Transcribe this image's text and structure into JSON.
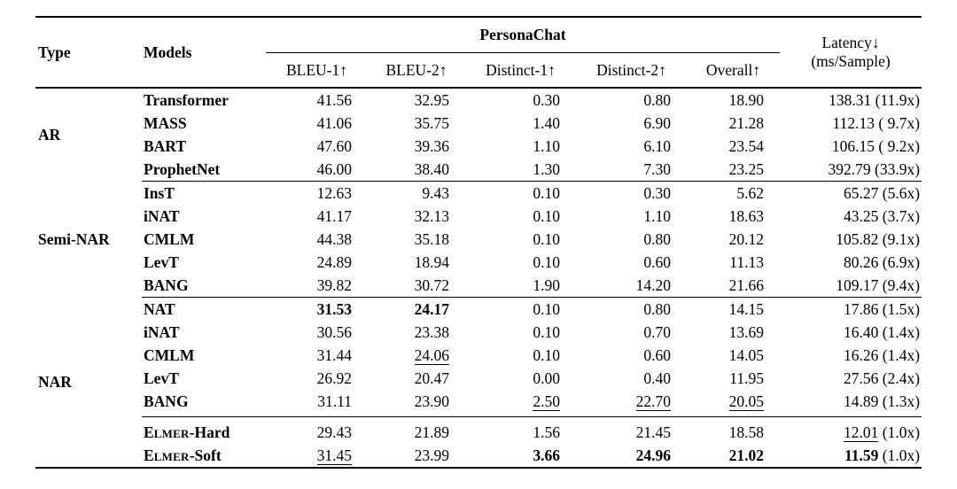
{
  "table": {
    "header": {
      "type_label": "Type",
      "models_label": "Models",
      "dataset_label": "PersonaChat",
      "metrics": [
        "BLEU-1↑",
        "BLEU-2↑",
        "Distinct-1↑",
        "Distinct-2↑",
        "Overall↑"
      ],
      "latency_line1": "Latency↓",
      "latency_line2": "(ms/Sample)"
    },
    "groups": [
      {
        "type": "AR",
        "divider": true,
        "blocks": [
          {
            "rows": [
              {
                "model": "Transformer",
                "sc": false,
                "values": [
                  "41.56",
                  "32.95",
                  "0.30",
                  "0.80",
                  "18.90"
                ],
                "styles": [
                  "",
                  "",
                  "",
                  "",
                  ""
                ],
                "latency_num": "138.31",
                "latency_paren": "(11.9x)",
                "latency_style": ""
              },
              {
                "model": "MASS",
                "sc": false,
                "values": [
                  "41.06",
                  "35.75",
                  "1.40",
                  "6.90",
                  "21.28"
                ],
                "styles": [
                  "",
                  "",
                  "",
                  "",
                  ""
                ],
                "latency_num": "112.13",
                "latency_paren": "( 9.7x)",
                "latency_style": ""
              },
              {
                "model": "BART",
                "sc": false,
                "values": [
                  "47.60",
                  "39.36",
                  "1.10",
                  "6.10",
                  "23.54"
                ],
                "styles": [
                  "",
                  "",
                  "",
                  "",
                  ""
                ],
                "latency_num": "106.15",
                "latency_paren": "( 9.2x)",
                "latency_style": ""
              },
              {
                "model": "ProphetNet",
                "sc": false,
                "values": [
                  "46.00",
                  "38.40",
                  "1.30",
                  "7.30",
                  "23.25"
                ],
                "styles": [
                  "",
                  "",
                  "",
                  "",
                  ""
                ],
                "latency_num": "392.79",
                "latency_paren": "(33.9x)",
                "latency_style": ""
              }
            ]
          }
        ]
      },
      {
        "type": "Semi-NAR",
        "divider": true,
        "blocks": [
          {
            "rows": [
              {
                "model": "InsT",
                "sc": false,
                "values": [
                  "12.63",
                  "9.43",
                  "0.10",
                  "0.30",
                  "5.62"
                ],
                "styles": [
                  "",
                  "",
                  "",
                  "",
                  ""
                ],
                "latency_num": "65.27",
                "latency_paren": "(5.6x)",
                "latency_style": ""
              },
              {
                "model": "iNAT",
                "sc": false,
                "values": [
                  "41.17",
                  "32.13",
                  "0.10",
                  "1.10",
                  "18.63"
                ],
                "styles": [
                  "",
                  "",
                  "",
                  "",
                  ""
                ],
                "latency_num": "43.25",
                "latency_paren": "(3.7x)",
                "latency_style": ""
              },
              {
                "model": "CMLM",
                "sc": false,
                "values": [
                  "44.38",
                  "35.18",
                  "0.10",
                  "0.80",
                  "20.12"
                ],
                "styles": [
                  "",
                  "",
                  "",
                  "",
                  ""
                ],
                "latency_num": "105.82",
                "latency_paren": "(9.1x)",
                "latency_style": ""
              },
              {
                "model": "LevT",
                "sc": false,
                "values": [
                  "24.89",
                  "18.94",
                  "0.10",
                  "0.60",
                  "11.13"
                ],
                "styles": [
                  "",
                  "",
                  "",
                  "",
                  ""
                ],
                "latency_num": "80.26",
                "latency_paren": "(6.9x)",
                "latency_style": ""
              },
              {
                "model": "BANG",
                "sc": false,
                "values": [
                  "39.82",
                  "30.72",
                  "1.90",
                  "14.20",
                  "21.66"
                ],
                "styles": [
                  "",
                  "",
                  "",
                  "",
                  ""
                ],
                "latency_num": "109.17",
                "latency_paren": "(9.4x)",
                "latency_style": ""
              }
            ]
          }
        ]
      },
      {
        "type": "NAR",
        "divider": false,
        "blocks": [
          {
            "rows": [
              {
                "model": "NAT",
                "sc": false,
                "values": [
                  "31.53",
                  "24.17",
                  "0.10",
                  "0.80",
                  "14.15"
                ],
                "styles": [
                  "b",
                  "b",
                  "",
                  "",
                  ""
                ],
                "latency_num": "17.86",
                "latency_paren": "(1.5x)",
                "latency_style": ""
              },
              {
                "model": "iNAT",
                "sc": false,
                "values": [
                  "30.56",
                  "23.38",
                  "0.10",
                  "0.70",
                  "13.69"
                ],
                "styles": [
                  "",
                  "",
                  "",
                  "",
                  ""
                ],
                "latency_num": "16.40",
                "latency_paren": "(1.4x)",
                "latency_style": ""
              },
              {
                "model": "CMLM",
                "sc": false,
                "values": [
                  "31.44",
                  "24.06",
                  "0.10",
                  "0.60",
                  "14.05"
                ],
                "styles": [
                  "",
                  "u",
                  "",
                  "",
                  ""
                ],
                "latency_num": "16.26",
                "latency_paren": "(1.4x)",
                "latency_style": ""
              },
              {
                "model": "LevT",
                "sc": false,
                "values": [
                  "26.92",
                  "20.47",
                  "0.00",
                  "0.40",
                  "11.95"
                ],
                "styles": [
                  "",
                  "",
                  "",
                  "",
                  ""
                ],
                "latency_num": "27.56",
                "latency_paren": "(2.4x)",
                "latency_style": ""
              },
              {
                "model": "BANG",
                "sc": false,
                "values": [
                  "31.11",
                  "23.90",
                  "2.50",
                  "22.70",
                  "20.05"
                ],
                "styles": [
                  "",
                  "",
                  "u",
                  "u",
                  "u"
                ],
                "latency_num": "14.89",
                "latency_paren": "(1.3x)",
                "latency_style": ""
              }
            ]
          },
          {
            "rows": [
              {
                "model": "ELMER-Hard",
                "sc": true,
                "values": [
                  "29.43",
                  "21.89",
                  "1.56",
                  "21.45",
                  "18.58"
                ],
                "styles": [
                  "",
                  "",
                  "",
                  "",
                  ""
                ],
                "latency_num": "12.01",
                "latency_paren": "(1.0x)",
                "latency_style": "u"
              },
              {
                "model": "ELMER-Soft",
                "sc": true,
                "values": [
                  "31.45",
                  "23.99",
                  "3.66",
                  "24.96",
                  "21.02"
                ],
                "styles": [
                  "u",
                  "",
                  "b",
                  "b",
                  "b"
                ],
                "latency_num": "11.59",
                "latency_paren": "(1.0x)",
                "latency_style": "b"
              }
            ]
          }
        ]
      }
    ]
  }
}
